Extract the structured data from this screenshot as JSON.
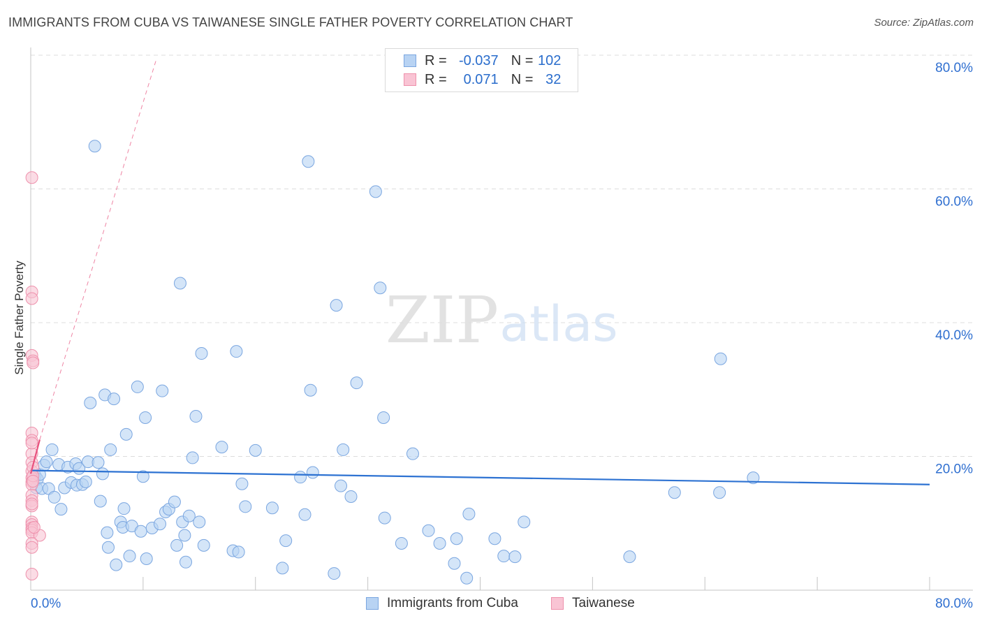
{
  "title": "IMMIGRANTS FROM CUBA VS TAIWANESE SINGLE FATHER POVERTY CORRELATION CHART",
  "source": "Source: ZipAtlas.com",
  "watermark": {
    "part1": "ZIP",
    "part2": "atlas"
  },
  "legend": {
    "r_label": "R =",
    "n_label": "N =",
    "rows": [
      {
        "series": "Immigrants from Cuba",
        "r": "-0.037",
        "n": "102",
        "fill": "#b8d3f3",
        "stroke": "#7aa6e0"
      },
      {
        "series": "Taiwanese",
        "r": "0.071",
        "n": "32",
        "fill": "#f9c4d4",
        "stroke": "#ee91ac"
      }
    ]
  },
  "chart_data": {
    "type": "scatter",
    "title": "IMMIGRANTS FROM CUBA VS TAIWANESE SINGLE FATHER POVERTY CORRELATION CHART",
    "xlabel": "",
    "ylabel": "Single Father Poverty",
    "xlim": [
      0,
      80
    ],
    "ylim": [
      0,
      80
    ],
    "x_tick_labels": [
      "0.0%",
      "80.0%"
    ],
    "y_tick_values": [
      20,
      40,
      60,
      80
    ],
    "y_tick_labels": [
      "20.0%",
      "40.0%",
      "60.0%",
      "80.0%"
    ],
    "grid": true,
    "series": [
      {
        "name": "Immigrants from Cuba",
        "color": "#7aa6e0",
        "fill": "#b8d3f3",
        "trend": {
          "x": [
            0,
            80
          ],
          "y": [
            17.9,
            15.8
          ],
          "color": "#2d72d2"
        },
        "points": [
          [
            0.4,
            17.1
          ],
          [
            0.5,
            15.3
          ],
          [
            0.6,
            16.6
          ],
          [
            0.8,
            17.3
          ],
          [
            1.0,
            15.2
          ],
          [
            1.2,
            18.7
          ],
          [
            1.4,
            19.2
          ],
          [
            1.6,
            15.2
          ],
          [
            1.9,
            21.0
          ],
          [
            2.1,
            13.9
          ],
          [
            2.5,
            18.8
          ],
          [
            2.7,
            12.1
          ],
          [
            3.0,
            15.3
          ],
          [
            3.3,
            18.4
          ],
          [
            3.6,
            16.1
          ],
          [
            4.0,
            18.9
          ],
          [
            4.1,
            15.7
          ],
          [
            4.3,
            18.2
          ],
          [
            4.6,
            15.8
          ],
          [
            4.9,
            16.2
          ],
          [
            5.1,
            19.2
          ],
          [
            5.3,
            28.0
          ],
          [
            5.7,
            66.4
          ],
          [
            6.0,
            19.1
          ],
          [
            6.2,
            13.3
          ],
          [
            6.4,
            17.4
          ],
          [
            6.6,
            29.2
          ],
          [
            6.8,
            8.6
          ],
          [
            6.9,
            6.4
          ],
          [
            7.1,
            21.0
          ],
          [
            7.4,
            28.6
          ],
          [
            7.6,
            3.8
          ],
          [
            8.0,
            10.2
          ],
          [
            8.2,
            9.4
          ],
          [
            8.3,
            12.2
          ],
          [
            8.5,
            23.3
          ],
          [
            8.8,
            5.1
          ],
          [
            9.0,
            9.6
          ],
          [
            9.5,
            30.4
          ],
          [
            9.8,
            8.8
          ],
          [
            10.0,
            17.0
          ],
          [
            10.2,
            25.8
          ],
          [
            10.3,
            4.7
          ],
          [
            10.8,
            9.3
          ],
          [
            11.5,
            9.9
          ],
          [
            11.7,
            29.8
          ],
          [
            12.0,
            11.7
          ],
          [
            12.3,
            12.1
          ],
          [
            12.8,
            13.2
          ],
          [
            13.0,
            6.7
          ],
          [
            13.3,
            45.9
          ],
          [
            13.5,
            10.2
          ],
          [
            13.7,
            8.2
          ],
          [
            13.8,
            4.2
          ],
          [
            14.1,
            11.1
          ],
          [
            14.4,
            19.8
          ],
          [
            14.7,
            26.0
          ],
          [
            15.0,
            10.2
          ],
          [
            15.4,
            6.7
          ],
          [
            17.0,
            21.4
          ],
          [
            18.0,
            5.9
          ],
          [
            18.5,
            5.7
          ],
          [
            15.2,
            35.4
          ],
          [
            18.3,
            35.7
          ],
          [
            18.8,
            15.9
          ],
          [
            19.1,
            12.5
          ],
          [
            20.0,
            20.9
          ],
          [
            21.5,
            12.3
          ],
          [
            22.4,
            3.3
          ],
          [
            22.7,
            7.4
          ],
          [
            24.0,
            16.9
          ],
          [
            24.4,
            11.3
          ],
          [
            24.7,
            64.1
          ],
          [
            24.9,
            29.9
          ],
          [
            25.1,
            17.6
          ],
          [
            27.0,
            2.5
          ],
          [
            27.2,
            42.6
          ],
          [
            27.6,
            15.6
          ],
          [
            27.8,
            21.0
          ],
          [
            28.5,
            14.0
          ],
          [
            29.0,
            31.0
          ],
          [
            30.7,
            59.6
          ],
          [
            31.1,
            45.2
          ],
          [
            31.4,
            25.8
          ],
          [
            31.5,
            10.8
          ],
          [
            33.0,
            7.0
          ],
          [
            34.0,
            20.4
          ],
          [
            35.4,
            8.9
          ],
          [
            36.4,
            7.0
          ],
          [
            37.7,
            4.0
          ],
          [
            37.9,
            7.7
          ],
          [
            38.8,
            1.8
          ],
          [
            39.0,
            11.4
          ],
          [
            41.3,
            7.7
          ],
          [
            42.1,
            5.1
          ],
          [
            43.1,
            5.0
          ],
          [
            43.9,
            10.2
          ],
          [
            57.3,
            14.6
          ],
          [
            61.3,
            14.6
          ],
          [
            61.4,
            34.6
          ],
          [
            64.3,
            16.8
          ],
          [
            53.3,
            5.0
          ]
        ]
      },
      {
        "name": "Taiwanese",
        "color": "#ee91ac",
        "fill": "#f9c4d4",
        "trend": {
          "x": [
            0,
            0.8
          ],
          "y": [
            17.4,
            22.5
          ],
          "color": "#e8527e"
        },
        "trend_extended": {
          "x": [
            0.8,
            11.2
          ],
          "y": [
            22.5,
            79.5
          ],
          "color": "#e8527e"
        },
        "points": [
          [
            0.1,
            61.7
          ],
          [
            0.1,
            44.6
          ],
          [
            0.1,
            43.6
          ],
          [
            0.1,
            35.1
          ],
          [
            0.2,
            34.3
          ],
          [
            0.2,
            34.0
          ],
          [
            0.1,
            23.5
          ],
          [
            0.1,
            22.4
          ],
          [
            0.1,
            20.4
          ],
          [
            0.1,
            19.1
          ],
          [
            0.1,
            17.8
          ],
          [
            0.1,
            16.8
          ],
          [
            0.1,
            16.2
          ],
          [
            0.1,
            15.8
          ],
          [
            0.1,
            14.2
          ],
          [
            0.1,
            13.4
          ],
          [
            0.1,
            12.6
          ],
          [
            0.1,
            10.2
          ],
          [
            0.1,
            9.8
          ],
          [
            0.1,
            9.3
          ],
          [
            0.1,
            9.0
          ],
          [
            0.1,
            8.6
          ],
          [
            0.8,
            8.2
          ],
          [
            0.1,
            7.0
          ],
          [
            0.1,
            6.4
          ],
          [
            0.1,
            2.4
          ],
          [
            0.3,
            9.4
          ],
          [
            0.2,
            18.4
          ],
          [
            0.2,
            17.1
          ],
          [
            0.1,
            12.9
          ],
          [
            0.1,
            22.0
          ],
          [
            0.2,
            16.3
          ]
        ]
      }
    ]
  }
}
